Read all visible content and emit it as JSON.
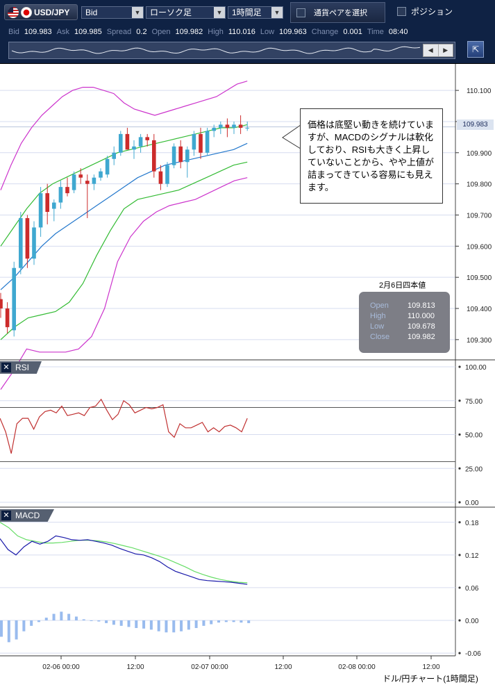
{
  "toolbar": {
    "pair_label": "USD/JPY",
    "price_type": "Bid",
    "chart_type": "ローソク足",
    "timeframe": "1時間足",
    "select_pair_label": "通貨ペアを選択",
    "position_label": "ポジション"
  },
  "quote": [
    {
      "label": "Bid",
      "value": "109.983"
    },
    {
      "label": "Ask",
      "value": "109.985"
    },
    {
      "label": "Spread",
      "value": "0.2"
    },
    {
      "label": "Open",
      "value": "109.982"
    },
    {
      "label": "High",
      "value": "110.016"
    },
    {
      "label": "Low",
      "value": "109.963"
    },
    {
      "label": "Change",
      "value": "0.001"
    },
    {
      "label": "Time",
      "value": "08:40"
    }
  ],
  "overview_nav": {
    "left": "◀",
    "right": "▶"
  },
  "expand_icon": "⇱",
  "current_price_badge": "109.983",
  "callout_text": "価格は底堅い動きを続けていますが、MACDのシグナルは軟化しており、RSIも大きく上昇していないことから、やや上値が詰まってきている容易にも見えます。",
  "ohlc": {
    "title": "2月6日四本値",
    "rows": [
      {
        "k": "Open",
        "v": "109.813"
      },
      {
        "k": "High",
        "v": "110.000"
      },
      {
        "k": "Low",
        "v": "109.678"
      },
      {
        "k": "Close",
        "v": "109.982"
      }
    ]
  },
  "rsi_panel": {
    "label": "RSI",
    "close_icon": "✕"
  },
  "macd_panel": {
    "label": "MACD",
    "close_icon": "✕"
  },
  "footer_title": "ドル/円チャート(1時間足)",
  "colors": {
    "bull": "#3fa8d0",
    "bear": "#cc2b2b",
    "bollinger_outer": "#cc33cc",
    "bollinger_inner": "#33bb33",
    "ma_mid": "#88cc44",
    "ma_blue": "#2277cc",
    "rsi_line": "#c03030",
    "macd_line": "#1a1aaa",
    "signal_line": "#66dd66",
    "histogram": "#99bbee"
  },
  "chart_data": [
    {
      "type": "candlestick",
      "title": "",
      "y_ticks": [
        "110.100",
        "110.000",
        "109.900",
        "109.800",
        "109.700",
        "109.600",
        "109.500",
        "109.400",
        "109.300"
      ],
      "ylim": [
        109.235,
        110.185
      ],
      "x_ticks": [
        "02-06 00:00",
        "12:00",
        "02-07 00:00",
        "12:00",
        "02-08 00:00",
        "12:00"
      ],
      "candles": [
        {
          "o": 109.43,
          "h": 109.45,
          "l": 109.37,
          "c": 109.4
        },
        {
          "o": 109.4,
          "h": 109.42,
          "l": 109.32,
          "c": 109.34
        },
        {
          "o": 109.33,
          "h": 109.55,
          "l": 109.31,
          "c": 109.53
        },
        {
          "o": 109.53,
          "h": 109.71,
          "l": 109.51,
          "c": 109.69
        },
        {
          "o": 109.69,
          "h": 109.7,
          "l": 109.53,
          "c": 109.56
        },
        {
          "o": 109.56,
          "h": 109.68,
          "l": 109.54,
          "c": 109.66
        },
        {
          "o": 109.66,
          "h": 109.79,
          "l": 109.63,
          "c": 109.77
        },
        {
          "o": 109.77,
          "h": 109.8,
          "l": 109.67,
          "c": 109.71
        },
        {
          "o": 109.72,
          "h": 109.75,
          "l": 109.68,
          "c": 109.74
        },
        {
          "o": 109.74,
          "h": 109.81,
          "l": 109.72,
          "c": 109.79
        },
        {
          "o": 109.79,
          "h": 109.82,
          "l": 109.76,
          "c": 109.77
        },
        {
          "o": 109.78,
          "h": 109.84,
          "l": 109.77,
          "c": 109.83
        },
        {
          "o": 109.83,
          "h": 109.85,
          "l": 109.8,
          "c": 109.82
        },
        {
          "o": 109.81,
          "h": 109.83,
          "l": 109.69,
          "c": 109.8
        },
        {
          "o": 109.8,
          "h": 109.83,
          "l": 109.78,
          "c": 109.82
        },
        {
          "o": 109.82,
          "h": 109.85,
          "l": 109.81,
          "c": 109.84
        },
        {
          "o": 109.83,
          "h": 109.89,
          "l": 109.82,
          "c": 109.88
        },
        {
          "o": 109.88,
          "h": 109.92,
          "l": 109.86,
          "c": 109.9
        },
        {
          "o": 109.9,
          "h": 109.97,
          "l": 109.89,
          "c": 109.96
        },
        {
          "o": 109.96,
          "h": 109.98,
          "l": 109.91,
          "c": 109.91
        },
        {
          "o": 109.91,
          "h": 109.94,
          "l": 109.88,
          "c": 109.92
        },
        {
          "o": 109.92,
          "h": 109.96,
          "l": 109.9,
          "c": 109.95
        },
        {
          "o": 109.95,
          "h": 109.96,
          "l": 109.92,
          "c": 109.94
        },
        {
          "o": 109.94,
          "h": 109.96,
          "l": 109.82,
          "c": 109.84
        },
        {
          "o": 109.84,
          "h": 109.86,
          "l": 109.78,
          "c": 109.8
        },
        {
          "o": 109.8,
          "h": 109.87,
          "l": 109.79,
          "c": 109.86
        },
        {
          "o": 109.86,
          "h": 109.93,
          "l": 109.85,
          "c": 109.92
        },
        {
          "o": 109.92,
          "h": 109.94,
          "l": 109.85,
          "c": 109.87
        },
        {
          "o": 109.87,
          "h": 109.92,
          "l": 109.82,
          "c": 109.91
        },
        {
          "o": 109.91,
          "h": 109.97,
          "l": 109.89,
          "c": 109.96
        },
        {
          "o": 109.96,
          "h": 109.98,
          "l": 109.88,
          "c": 109.9
        },
        {
          "o": 109.9,
          "h": 109.98,
          "l": 109.89,
          "c": 109.97
        },
        {
          "o": 109.97,
          "h": 109.99,
          "l": 109.95,
          "c": 109.98
        },
        {
          "o": 109.98,
          "h": 110.0,
          "l": 109.96,
          "c": 109.99
        },
        {
          "o": 109.99,
          "h": 110.01,
          "l": 109.95,
          "c": 109.98
        },
        {
          "o": 109.98,
          "h": 110.0,
          "l": 109.96,
          "c": 109.99
        },
        {
          "o": 109.99,
          "h": 110.02,
          "l": 109.96,
          "c": 109.98
        },
        {
          "o": 109.98,
          "h": 110.0,
          "l": 109.97,
          "c": 109.98
        }
      ],
      "bollinger_upper2": [
        109.78,
        109.86,
        109.93,
        109.98,
        110.02,
        110.05,
        110.08,
        110.1,
        110.11,
        110.11,
        110.1,
        110.09,
        110.06,
        110.04,
        110.03,
        110.02,
        110.03,
        110.04,
        110.05,
        110.06,
        110.07,
        110.08,
        110.1,
        110.12,
        110.13
      ],
      "bollinger_upper1": [
        109.6,
        109.66,
        109.72,
        109.77,
        109.8,
        109.82,
        109.84,
        109.86,
        109.88,
        109.9,
        109.91,
        109.92,
        109.93,
        109.94,
        109.95,
        109.96,
        109.97,
        109.98,
        109.98,
        109.99
      ],
      "ma_blue": [
        109.46,
        109.5,
        109.55,
        109.6,
        109.64,
        109.67,
        109.7,
        109.73,
        109.76,
        109.79,
        109.82,
        109.84,
        109.86,
        109.87,
        109.88,
        109.89,
        109.9,
        109.91,
        109.93
      ],
      "bollinger_lower1": [
        109.3,
        109.34,
        109.37,
        109.38,
        109.39,
        109.42,
        109.48,
        109.57,
        109.65,
        109.72,
        109.75,
        109.76,
        109.77,
        109.78,
        109.8,
        109.82,
        109.84,
        109.86,
        109.87
      ],
      "bollinger_lower2": [
        109.14,
        109.2,
        109.27,
        109.26,
        109.26,
        109.26,
        109.27,
        109.31,
        109.4,
        109.55,
        109.63,
        109.68,
        109.71,
        109.73,
        109.74,
        109.75,
        109.77,
        109.79,
        109.81,
        109.82
      ]
    },
    {
      "type": "line",
      "title": "RSI",
      "y_ticks": [
        "100.00",
        "75.00",
        "50.00",
        "25.00",
        "0.00"
      ],
      "ylim": [
        0,
        100
      ],
      "levels": [
        70,
        30
      ],
      "values": [
        62,
        52,
        36,
        58,
        62,
        62,
        54,
        63,
        67,
        68,
        66,
        71,
        64,
        65,
        66,
        64,
        70,
        71,
        76,
        68,
        61,
        65,
        75,
        72,
        66,
        68,
        70,
        69,
        70,
        72,
        52,
        48,
        58,
        55,
        55,
        57,
        59,
        52,
        55,
        52,
        56,
        57,
        55,
        52,
        62
      ]
    },
    {
      "type": "line",
      "title": "MACD",
      "y_ticks": [
        "0.18",
        "0.12",
        "0.06",
        "0.00",
        "-0.06"
      ],
      "ylim": [
        -0.065,
        0.195
      ],
      "macd": [
        0.15,
        0.13,
        0.12,
        0.135,
        0.145,
        0.14,
        0.145,
        0.155,
        0.152,
        0.148,
        0.147,
        0.148,
        0.145,
        0.142,
        0.138,
        0.132,
        0.127,
        0.122,
        0.12,
        0.115,
        0.108,
        0.098,
        0.09,
        0.085,
        0.08,
        0.075,
        0.073,
        0.072,
        0.071,
        0.07,
        0.068,
        0.066
      ],
      "signal": [
        0.18,
        0.17,
        0.155,
        0.148,
        0.145,
        0.142,
        0.142,
        0.143,
        0.145,
        0.147,
        0.147,
        0.146,
        0.144,
        0.141,
        0.137,
        0.133,
        0.128,
        0.123,
        0.118,
        0.112,
        0.105,
        0.098,
        0.09,
        0.084,
        0.079,
        0.075,
        0.072,
        0.07,
        0.069
      ],
      "histogram": [
        -0.03,
        -0.04,
        -0.035,
        -0.02,
        -0.01,
        -0.003,
        0.005,
        0.012,
        0.016,
        0.012,
        0.007,
        0.002,
        0.0,
        -0.002,
        -0.005,
        -0.008,
        -0.01,
        -0.012,
        -0.014,
        -0.015,
        -0.017,
        -0.02,
        -0.022,
        -0.022,
        -0.02,
        -0.017,
        -0.014,
        -0.01,
        -0.007,
        -0.004,
        -0.003,
        -0.003,
        -0.004,
        -0.005
      ]
    }
  ]
}
